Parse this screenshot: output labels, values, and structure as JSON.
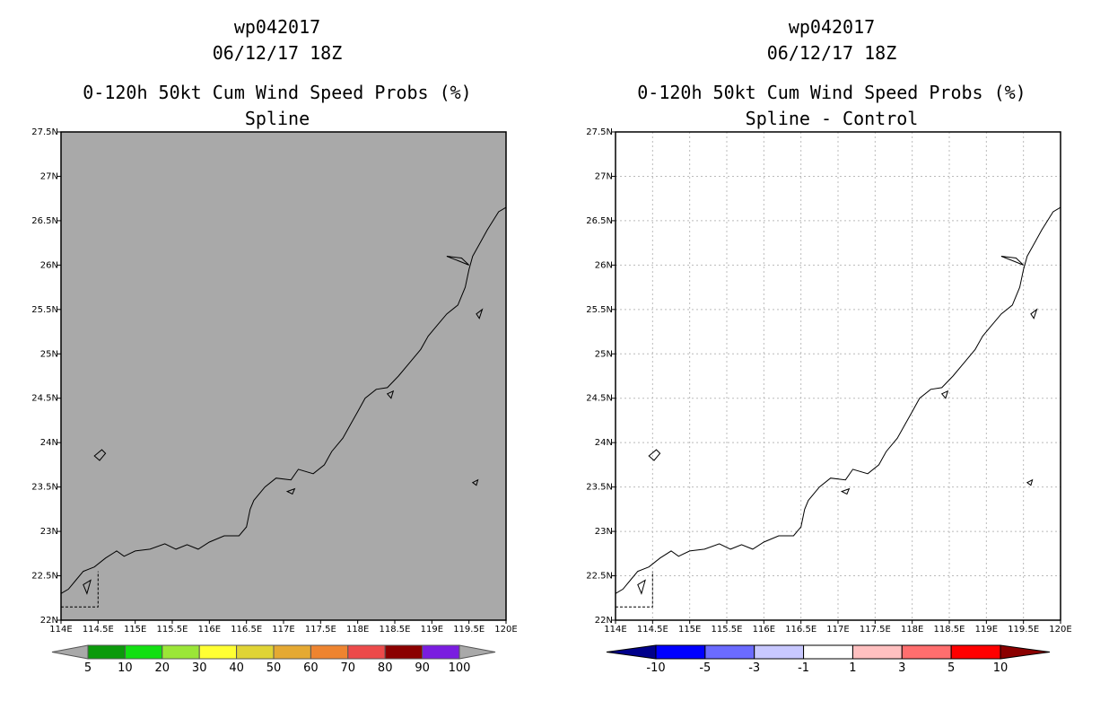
{
  "left_panel": {
    "storm_id": "wp042017",
    "datetime": "06/12/17 18Z",
    "product": "0-120h 50kt Cum Wind Speed Probs (%)",
    "subtitle": "Spline",
    "map_fill": "#a9a9a9",
    "colorbar": {
      "labels": [
        "5",
        "10",
        "20",
        "30",
        "40",
        "50",
        "60",
        "70",
        "80",
        "90",
        "100"
      ],
      "colors": [
        "#a9a9a9",
        "#0b9a0b",
        "#12e012",
        "#9be637",
        "#ffff33",
        "#e0d435",
        "#e5a932",
        "#ee8430",
        "#ec4a4a",
        "#8b0000",
        "#7a1de0",
        "#a9a9a9"
      ]
    }
  },
  "right_panel": {
    "storm_id": "wp042017",
    "datetime": "06/12/17 18Z",
    "product": "0-120h 50kt Cum Wind Speed Probs (%)",
    "subtitle": "Spline - Control",
    "map_fill": "#ffffff",
    "colorbar": {
      "labels": [
        "-10",
        "-5",
        "-3",
        "-1",
        "1",
        "3",
        "5",
        "10"
      ],
      "colors": [
        "#00008b",
        "#0000ff",
        "#6b6bff",
        "#c8c8ff",
        "#ffffff",
        "#ffc0c0",
        "#ff6e6e",
        "#ff0000",
        "#8b0000"
      ]
    }
  },
  "axes": {
    "x_labels": [
      "114E",
      "114.5E",
      "115E",
      "115.5E",
      "116E",
      "116.5E",
      "117E",
      "117.5E",
      "118E",
      "118.5E",
      "119E",
      "119.5E",
      "120E"
    ],
    "y_labels": [
      "22N",
      "22.5N",
      "23N",
      "23.5N",
      "24N",
      "24.5N",
      "25N",
      "25.5N",
      "26N",
      "26.5N",
      "27N",
      "27.5N"
    ],
    "lon_range": [
      114,
      120
    ],
    "lat_range": [
      22,
      27.5
    ]
  },
  "coastline": {
    "mainland": [
      [
        114.0,
        22.3
      ],
      [
        114.1,
        22.35
      ],
      [
        114.2,
        22.45
      ],
      [
        114.3,
        22.55
      ],
      [
        114.45,
        22.6
      ],
      [
        114.6,
        22.7
      ],
      [
        114.75,
        22.78
      ],
      [
        114.85,
        22.72
      ],
      [
        115.0,
        22.78
      ],
      [
        115.2,
        22.8
      ],
      [
        115.4,
        22.86
      ],
      [
        115.55,
        22.8
      ],
      [
        115.7,
        22.85
      ],
      [
        115.85,
        22.8
      ],
      [
        116.0,
        22.88
      ],
      [
        116.2,
        22.95
      ],
      [
        116.4,
        22.95
      ],
      [
        116.5,
        23.05
      ],
      [
        116.55,
        23.25
      ],
      [
        116.6,
        23.35
      ],
      [
        116.75,
        23.5
      ],
      [
        116.9,
        23.6
      ],
      [
        117.1,
        23.58
      ],
      [
        117.2,
        23.7
      ],
      [
        117.4,
        23.65
      ],
      [
        117.55,
        23.75
      ],
      [
        117.65,
        23.9
      ],
      [
        117.8,
        24.05
      ],
      [
        117.9,
        24.2
      ],
      [
        118.0,
        24.35
      ],
      [
        118.1,
        24.5
      ],
      [
        118.25,
        24.6
      ],
      [
        118.4,
        24.62
      ],
      [
        118.55,
        24.75
      ],
      [
        118.7,
        24.9
      ],
      [
        118.85,
        25.05
      ],
      [
        118.95,
        25.2
      ],
      [
        119.05,
        25.3
      ],
      [
        119.2,
        25.45
      ],
      [
        119.35,
        25.55
      ],
      [
        119.45,
        25.75
      ],
      [
        119.5,
        25.95
      ],
      [
        119.55,
        26.1
      ],
      [
        119.65,
        26.25
      ],
      [
        119.75,
        26.4
      ],
      [
        119.9,
        26.6
      ],
      [
        120.0,
        26.65
      ]
    ],
    "bay": [
      [
        119.2,
        26.1
      ],
      [
        119.35,
        26.05
      ],
      [
        119.5,
        26.0
      ],
      [
        119.4,
        26.08
      ],
      [
        119.2,
        26.1
      ]
    ],
    "islands": [
      [
        [
          114.45,
          23.85
        ],
        [
          114.55,
          23.92
        ],
        [
          114.6,
          23.88
        ],
        [
          114.52,
          23.8
        ],
        [
          114.45,
          23.85
        ]
      ],
      [
        [
          117.05,
          23.45
        ],
        [
          117.15,
          23.48
        ],
        [
          117.12,
          23.42
        ],
        [
          117.05,
          23.45
        ]
      ],
      [
        [
          119.55,
          23.55
        ],
        [
          119.62,
          23.58
        ],
        [
          119.6,
          23.52
        ],
        [
          119.55,
          23.55
        ]
      ],
      [
        [
          119.6,
          25.45
        ],
        [
          119.68,
          25.5
        ],
        [
          119.64,
          25.4
        ],
        [
          119.6,
          25.45
        ]
      ],
      [
        [
          118.4,
          24.55
        ],
        [
          118.48,
          24.58
        ],
        [
          118.45,
          24.5
        ],
        [
          118.4,
          24.55
        ]
      ],
      [
        [
          114.3,
          22.4
        ],
        [
          114.4,
          22.45
        ],
        [
          114.35,
          22.3
        ],
        [
          114.3,
          22.4
        ]
      ]
    ],
    "border": [
      [
        114.0,
        22.15
      ],
      [
        114.5,
        22.15
      ],
      [
        114.5,
        22.55
      ]
    ]
  }
}
